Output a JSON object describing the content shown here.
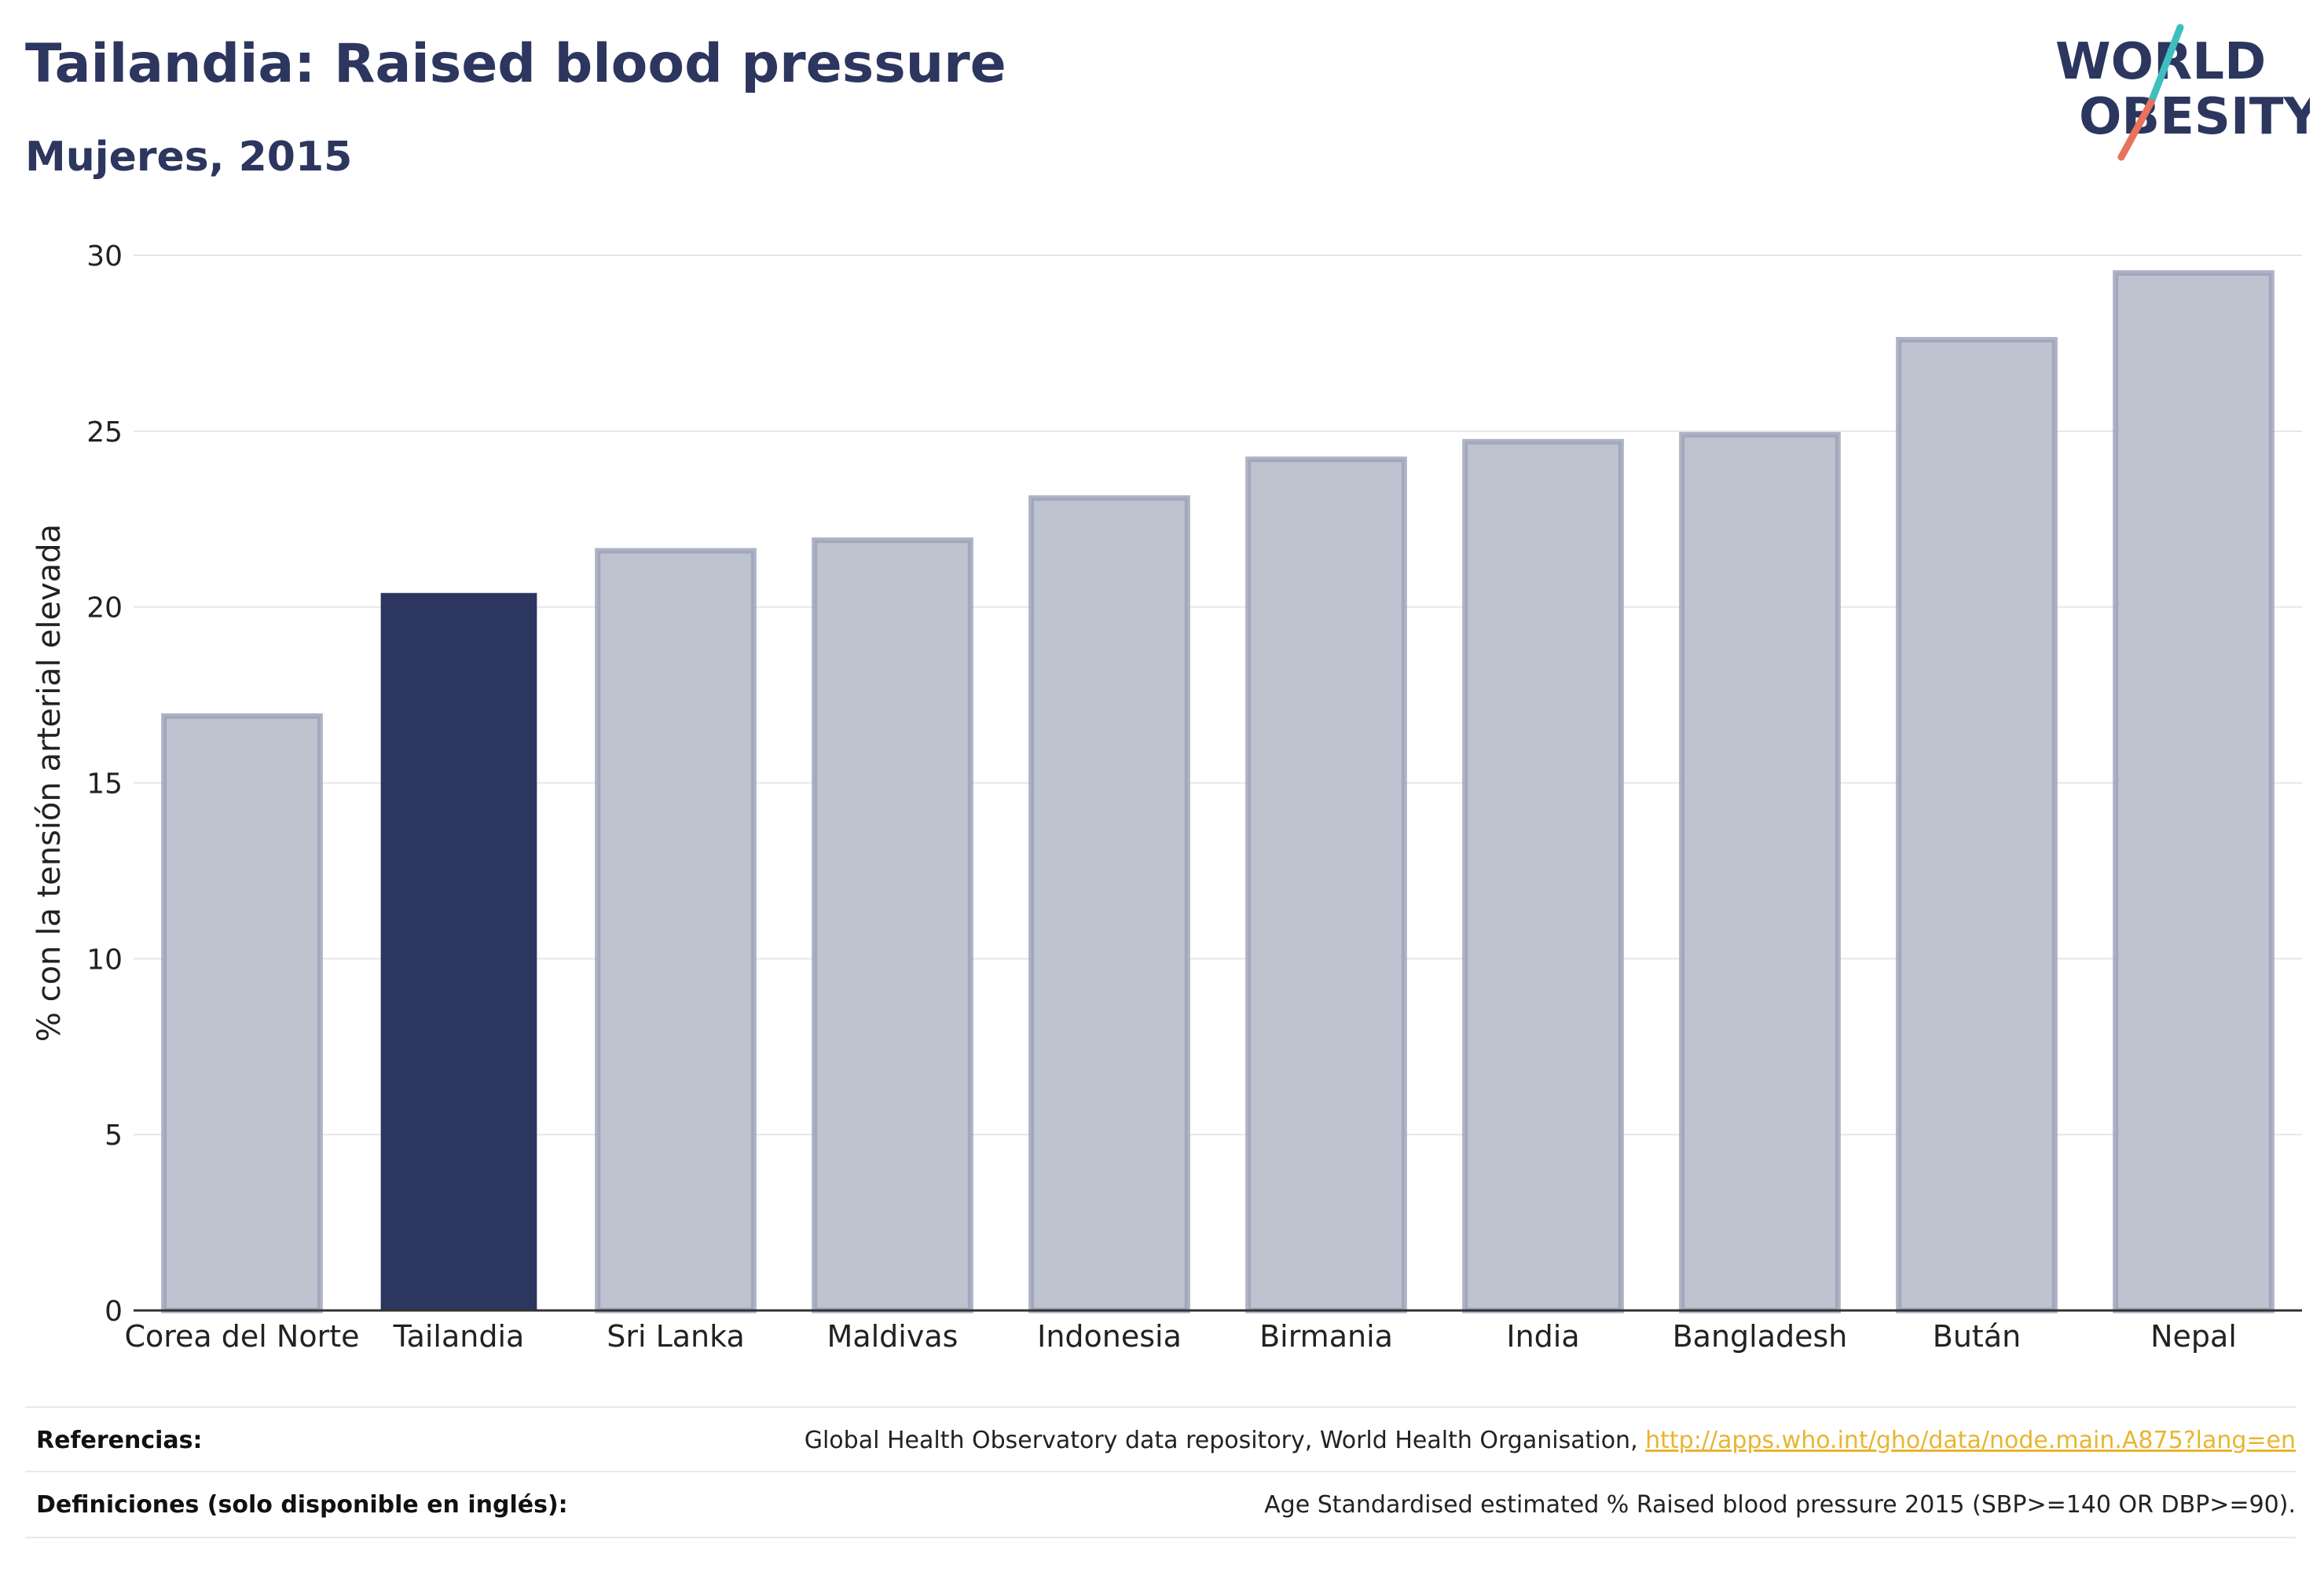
{
  "header": {
    "title": "Tailandia: Raised blood pressure",
    "subtitle": "Mujeres, 2015"
  },
  "logo": {
    "line1": "WORLD",
    "line2": "OBESITY",
    "slash_colors": [
      "#3dbfbf",
      "#e8725c"
    ]
  },
  "chart_data": {
    "type": "bar",
    "categories": [
      "Corea del Norte",
      "Tailandia",
      "Sri Lanka",
      "Maldivas",
      "Indonesia",
      "Birmania",
      "India",
      "Bangladesh",
      "Bután",
      "Nepal"
    ],
    "values": [
      16.9,
      20.4,
      21.6,
      21.9,
      23.1,
      24.2,
      24.7,
      24.9,
      27.6,
      29.5
    ],
    "highlight": "Tailandia",
    "xlabel": "",
    "ylabel": "% con la tensión arterial elevada",
    "ylim": [
      0,
      30
    ],
    "yticks": [
      0,
      5,
      10,
      15,
      20,
      25,
      30
    ],
    "grid": true,
    "colors": {
      "highlight": "#2c365e",
      "bar_fill": "#bfc2cf",
      "bar_stroke": "#9aa0b8",
      "grid": "#e6e6ec",
      "axis": "#333333"
    }
  },
  "footer": {
    "references_label": "Referencias:",
    "references_text": "Global Health Observatory data repository, World Health Organisation, ",
    "references_link": "http://apps.who.int/gho/data/node.main.A875?lang=en",
    "definitions_label": "Definiciones (solo disponible en inglés):",
    "definitions_text": "Age Standardised estimated % Raised blood pressure 2015 (SBP>=140 OR DBP>=90)."
  }
}
